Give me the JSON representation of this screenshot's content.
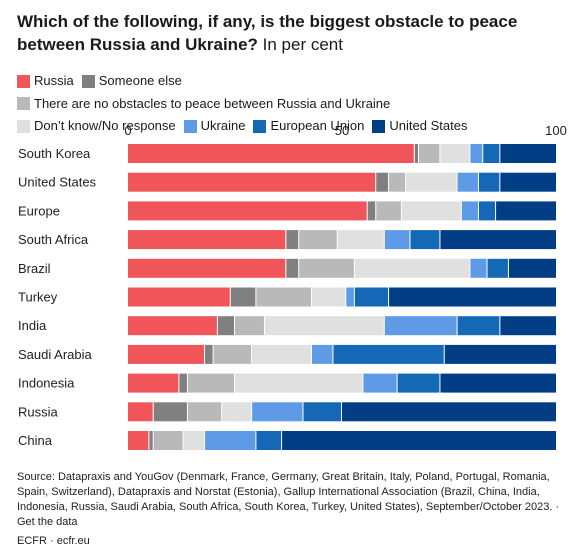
{
  "title": {
    "bold": "Which of the following, if any, is the biggest obstacle to peace between Russia and Ukraine?",
    "sub": "In per cent"
  },
  "colors": {
    "Russia": "#f0555a",
    "Someone else": "#808080",
    "There are no obstacles to peace between Russia and Ukraine": "#b9b9b9",
    "Don't know/No response": "#e0e0e0",
    "Ukraine": "#5f9ae6",
    "European Union": "#1568b5",
    "United States": "#023e85"
  },
  "chart_data": {
    "type": "bar",
    "orientation": "horizontal",
    "stacked": true,
    "xlim": [
      0,
      100
    ],
    "x_ticks": [
      "0",
      "50",
      "100"
    ],
    "categories": [
      "South Korea",
      "United States",
      "Europe",
      "South Africa",
      "Brazil",
      "Turkey",
      "India",
      "Saudi Arabia",
      "Indonesia",
      "Russia",
      "China"
    ],
    "series": [
      {
        "name": "Russia",
        "values": [
          67,
          58,
          56,
          37,
          37,
          24,
          21,
          18,
          12,
          6,
          5
        ]
      },
      {
        "name": "Someone else",
        "values": [
          1,
          3,
          2,
          3,
          3,
          6,
          4,
          2,
          2,
          8,
          1
        ]
      },
      {
        "name": "There are no obstacles to peace between Russia and Ukraine",
        "values": [
          5,
          4,
          6,
          9,
          13,
          13,
          7,
          9,
          11,
          8,
          7
        ]
      },
      {
        "name": "Don’t know/No response",
        "values": [
          7,
          12,
          14,
          11,
          27,
          8,
          28,
          14,
          30,
          7,
          5
        ]
      },
      {
        "name": "Ukraine",
        "values": [
          3,
          5,
          4,
          6,
          4,
          2,
          17,
          5,
          8,
          12,
          12
        ]
      },
      {
        "name": "European Union",
        "values": [
          4,
          5,
          4,
          7,
          5,
          8,
          10,
          26,
          10,
          9,
          6
        ]
      },
      {
        "name": "United States",
        "values": [
          13,
          13,
          14,
          27,
          11,
          39,
          13,
          26,
          27,
          50,
          64
        ]
      }
    ]
  },
  "source": "Source: Datapraxis and YouGov (Denmark, France, Germany, Great Britain, Italy, Poland, Portugal, Romania, Spain, Switzerland), Datapraxis and Norstat (Estonia), Gallup International Association (Brazil, China, India, Indonesia, Russia, Saudi Arabia, South Africa, South Korea, Turkey, United States), September/October 2023. · Get the data",
  "footer": "ECFR · ecfr.eu"
}
